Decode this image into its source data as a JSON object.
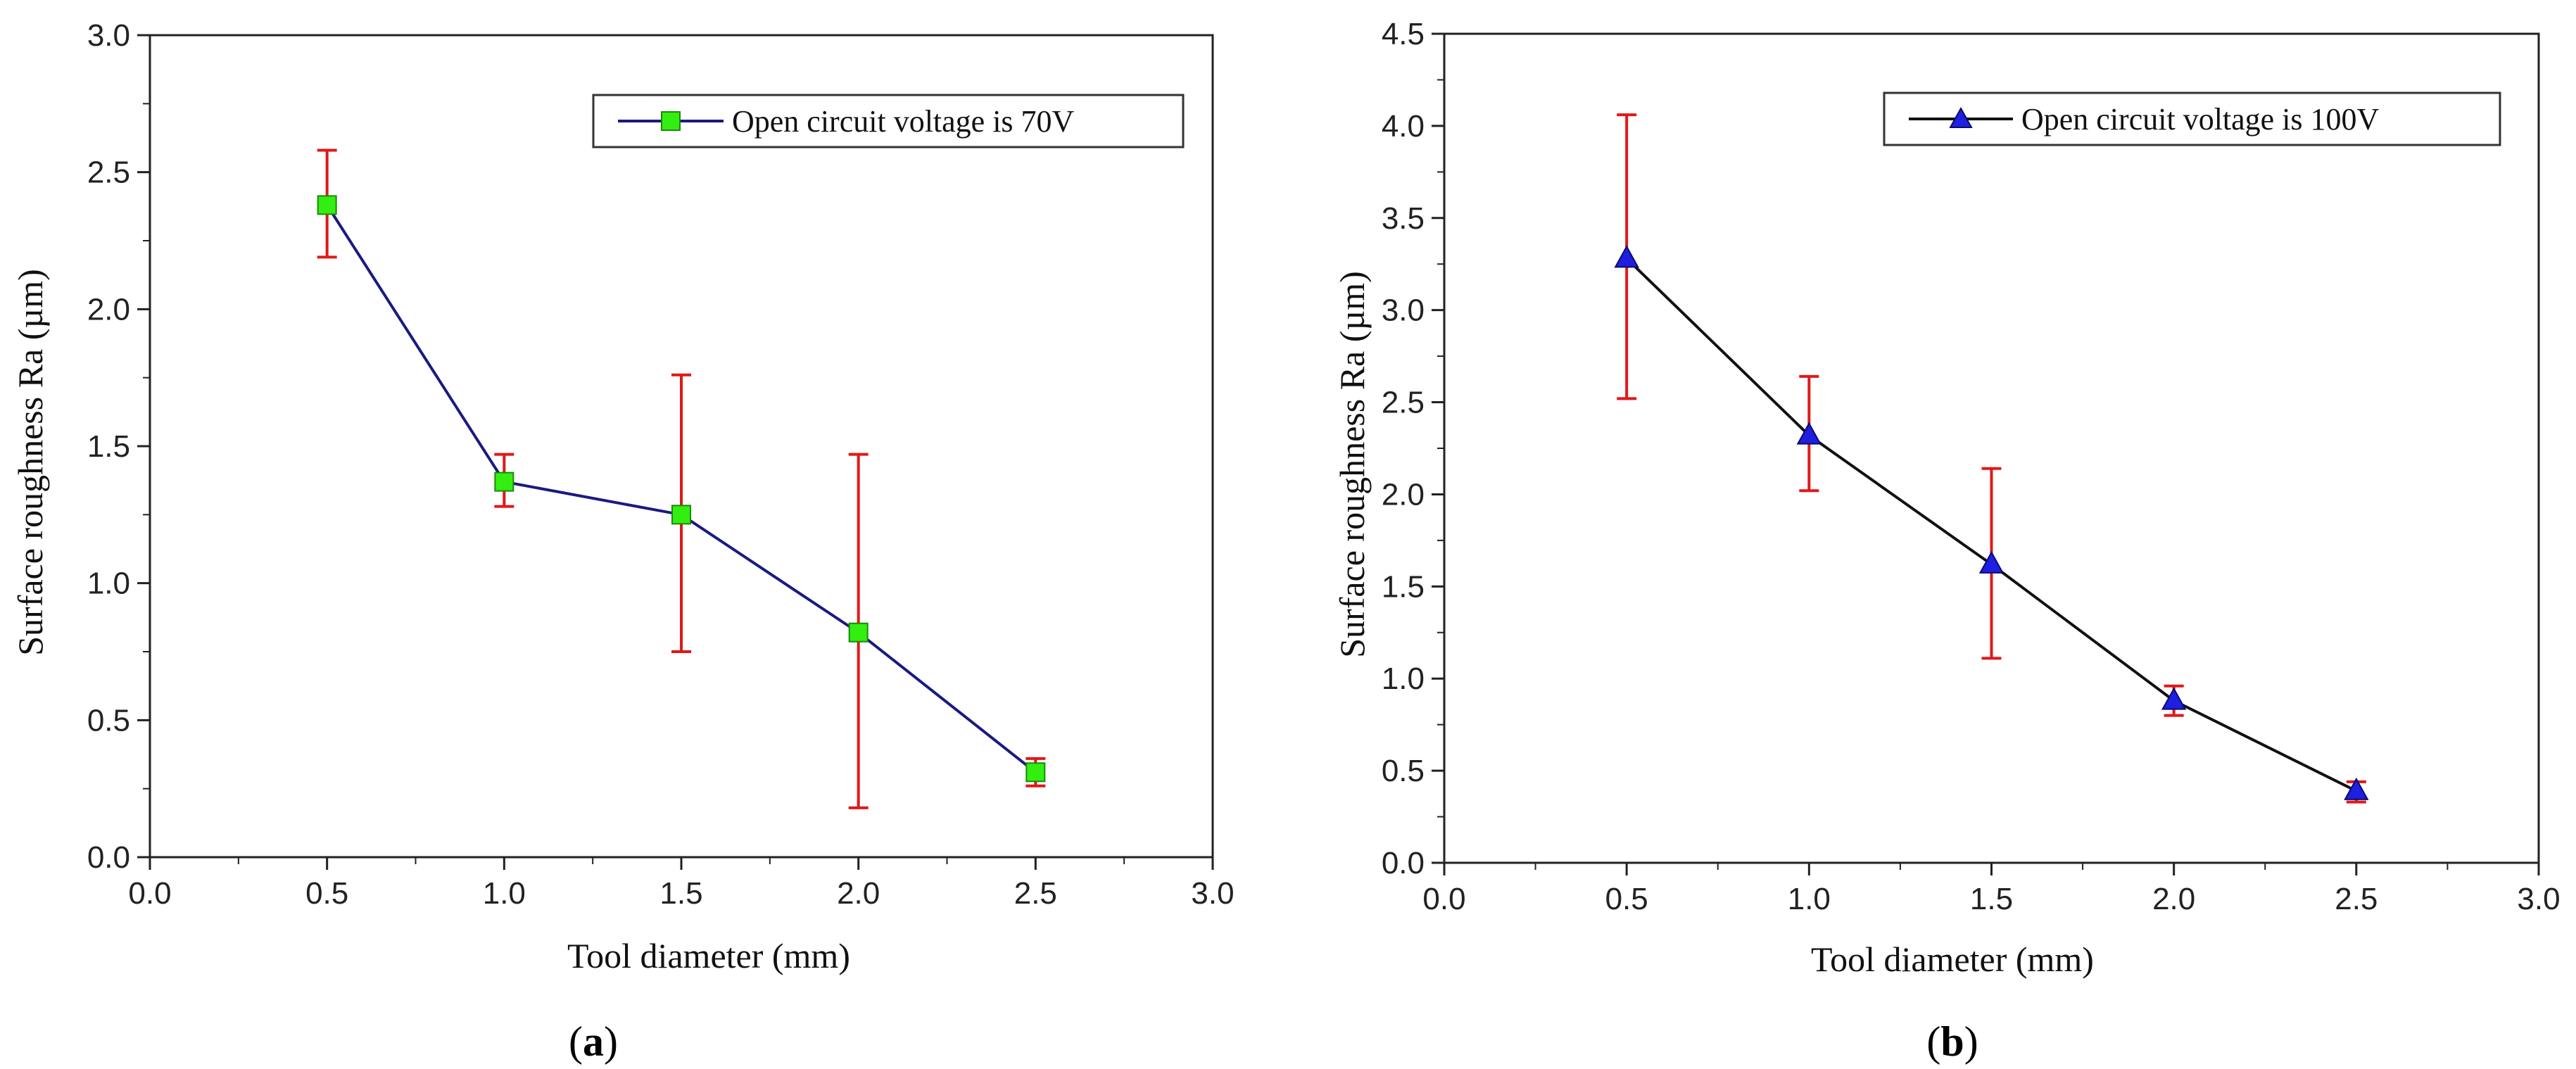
{
  "chart_data": [
    {
      "type": "line",
      "panel_label": {
        "open": "(",
        "letter": "a",
        "close": ")"
      },
      "xlabel": "Tool diameter (mm)",
      "ylabel": "Surface roughness Ra (µm)",
      "xlim": [
        0,
        3
      ],
      "ylim": [
        0,
        3
      ],
      "x_ticks": [
        0,
        0.5,
        1,
        1.5,
        2,
        2.5,
        3
      ],
      "x_tick_labels": [
        "0.0",
        "0.5",
        "1.0",
        "1.5",
        "2.0",
        "2.5",
        "3.0"
      ],
      "y_ticks": [
        0,
        0.5,
        1,
        1.5,
        2,
        2.5,
        3
      ],
      "y_tick_labels": [
        "0.0",
        "0.5",
        "1.0",
        "1.5",
        "2.0",
        "2.5",
        "3.0"
      ],
      "grid": false,
      "legend_position": "top-right",
      "series": [
        {
          "name": "Open circuit voltage is 70V",
          "line_color": "#1a1a80",
          "marker": "square",
          "marker_color": "#33ee11",
          "error_color": "#e01818",
          "x": [
            0.5,
            1.0,
            1.5,
            2.0,
            2.5
          ],
          "y": [
            2.38,
            1.37,
            1.25,
            0.82,
            0.31
          ],
          "err_low": [
            2.19,
            1.28,
            0.75,
            0.18,
            0.26
          ],
          "err_high": [
            2.58,
            1.47,
            1.76,
            1.47,
            0.36
          ]
        }
      ]
    },
    {
      "type": "line",
      "panel_label": {
        "open": "(",
        "letter": "b",
        "close": ")"
      },
      "xlabel": "Tool diameter (mm)",
      "ylabel": "Surface roughness Ra (µm)",
      "xlim": [
        0,
        3
      ],
      "ylim": [
        0,
        4.5
      ],
      "x_ticks": [
        0,
        0.5,
        1,
        1.5,
        2,
        2.5,
        3
      ],
      "x_tick_labels": [
        "0.0",
        "0.5",
        "1.0",
        "1.5",
        "2.0",
        "2.5",
        "3.0"
      ],
      "y_ticks": [
        0,
        0.5,
        1,
        1.5,
        2,
        2.5,
        3,
        3.5,
        4,
        4.5
      ],
      "y_tick_labels": [
        "0.0",
        "0.5",
        "1.0",
        "1.5",
        "2.0",
        "2.5",
        "3.0",
        "3.5",
        "4.0",
        "4.5"
      ],
      "grid": false,
      "legend_position": "top-right",
      "series": [
        {
          "name": "Open circuit voltage is 100V",
          "line_color": "#111111",
          "marker": "triangle",
          "marker_color": "#1f1fe0",
          "error_color": "#e01818",
          "x": [
            0.5,
            1.0,
            1.5,
            2.0,
            2.5
          ],
          "y": [
            3.28,
            2.32,
            1.62,
            0.88,
            0.39
          ],
          "err_low": [
            2.52,
            2.02,
            1.11,
            0.8,
            0.33
          ],
          "err_high": [
            4.06,
            2.64,
            2.14,
            0.96,
            0.44
          ]
        }
      ]
    }
  ]
}
